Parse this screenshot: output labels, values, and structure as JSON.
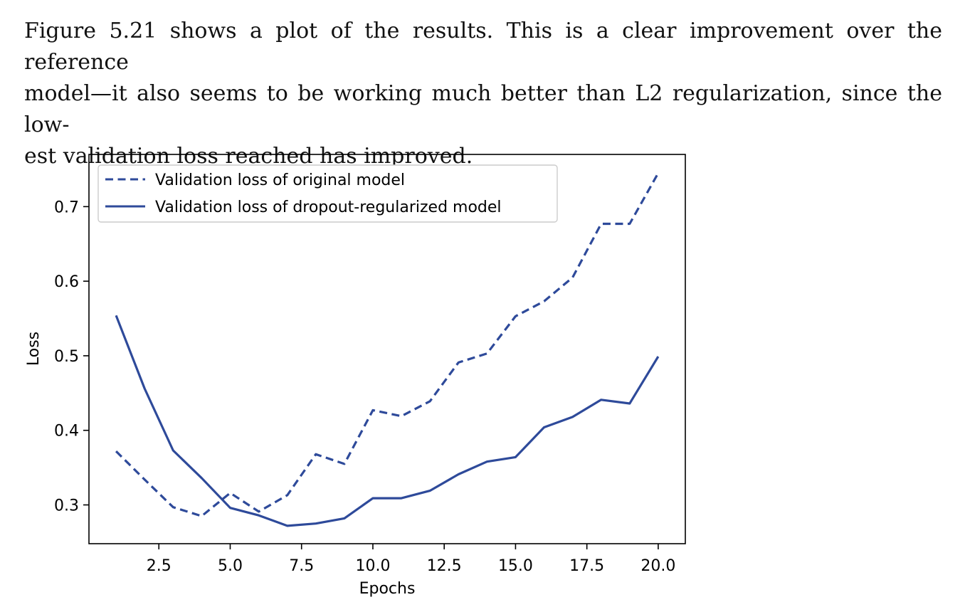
{
  "paragraph": {
    "lines": [
      "Figure 5.21 shows a plot of the results. This is a clear improvement over the reference",
      "model—it also seems to be working much better than L2 regularization, since the low-",
      "est validation loss reached has improved."
    ]
  },
  "chart_data": {
    "type": "line",
    "xlabel": "Epochs",
    "ylabel": "Loss",
    "xlim": [
      0.05,
      20.95
    ],
    "ylim": [
      0.248,
      0.77
    ],
    "xticks": [
      "2.5",
      "5.0",
      "7.5",
      "10.0",
      "12.5",
      "15.0",
      "17.5",
      "20.0"
    ],
    "yticks": [
      "0.3",
      "0.4",
      "0.5",
      "0.6",
      "0.7"
    ],
    "grid": false,
    "legend_position": "top-left",
    "color": "#2e4a9a",
    "x": [
      1,
      2,
      3,
      4,
      5,
      6,
      7,
      8,
      9,
      10,
      11,
      12,
      13,
      14,
      15,
      16,
      17,
      18,
      19,
      20
    ],
    "series": [
      {
        "name": "Validation loss of original model",
        "style": "dashed",
        "values": [
          0.372,
          0.334,
          0.297,
          0.285,
          0.316,
          0.291,
          0.313,
          0.368,
          0.355,
          0.427,
          0.419,
          0.439,
          0.491,
          0.503,
          0.553,
          0.573,
          0.605,
          0.677,
          0.677,
          0.745
        ]
      },
      {
        "name": "Validation loss of dropout-regularized model",
        "style": "solid",
        "values": [
          0.554,
          0.456,
          0.373,
          0.336,
          0.296,
          0.286,
          0.272,
          0.275,
          0.282,
          0.309,
          0.309,
          0.319,
          0.341,
          0.358,
          0.364,
          0.404,
          0.418,
          0.441,
          0.436,
          0.499
        ]
      }
    ]
  }
}
